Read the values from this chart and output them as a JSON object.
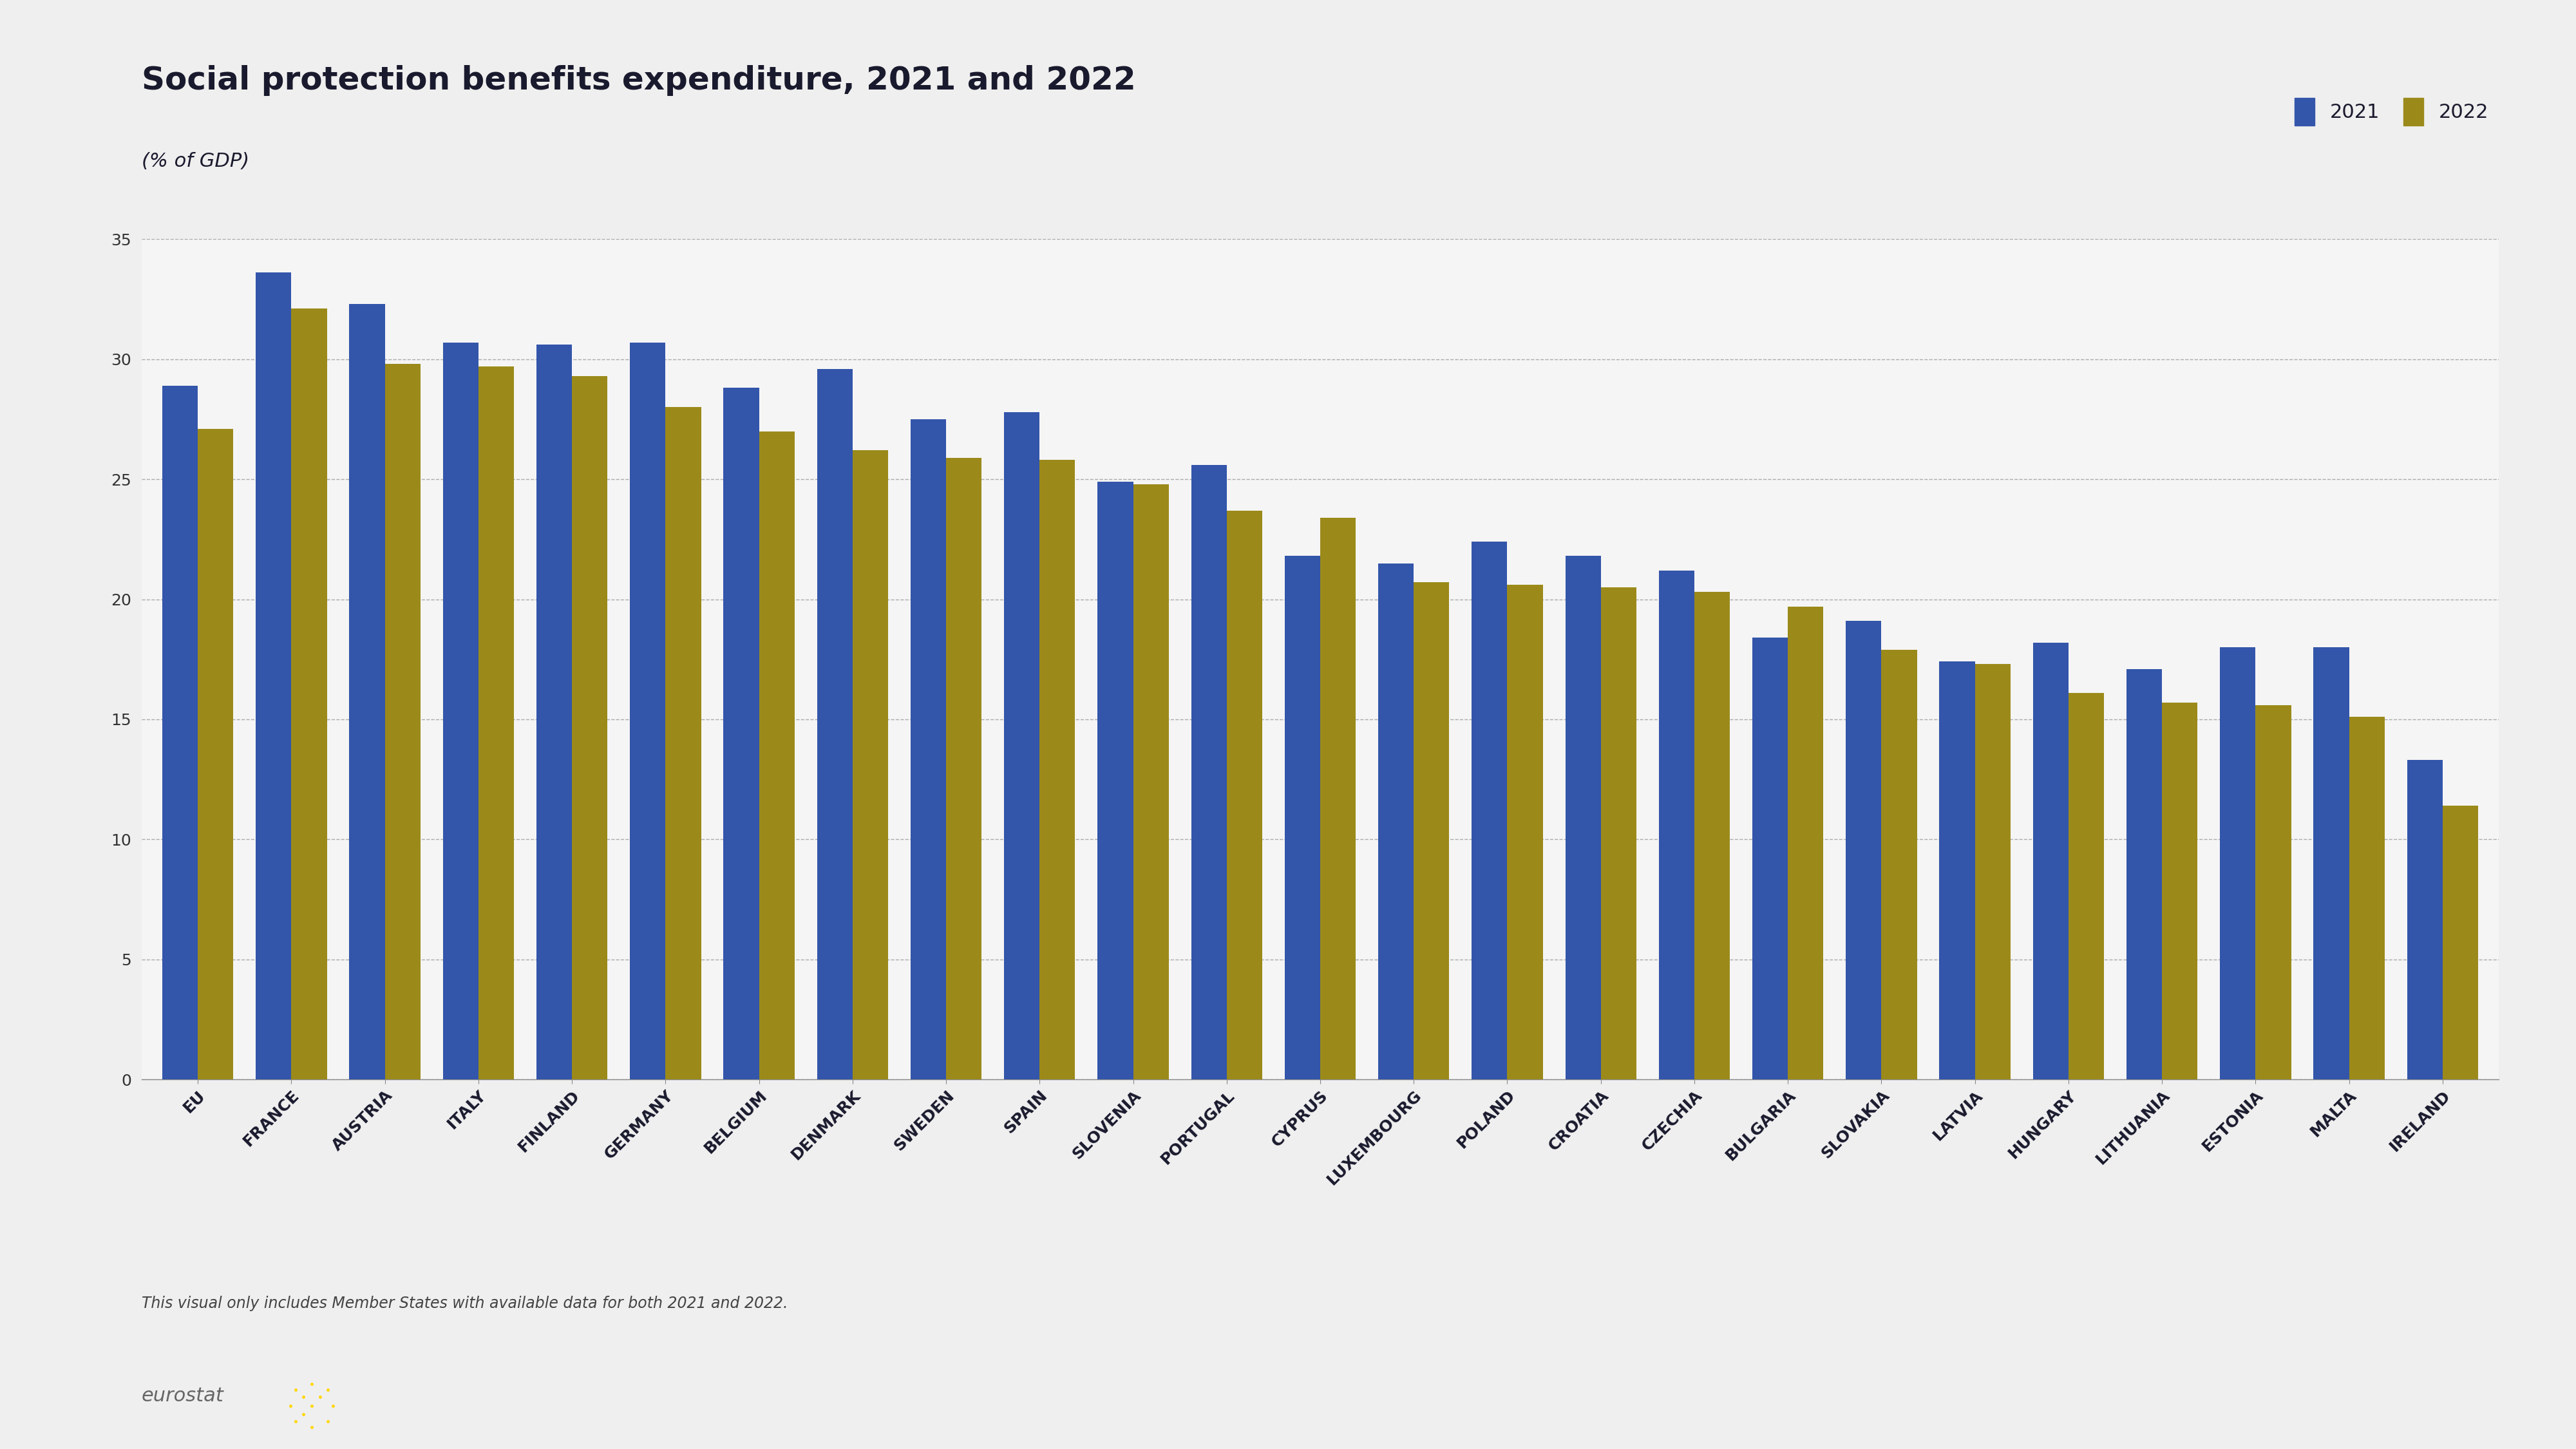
{
  "title": "Social protection benefits expenditure, 2021 and 2022",
  "subtitle": "(% of GDP)",
  "footnote": "This visual only includes Member States with available data for both 2021 and 2022.",
  "categories": [
    "EU",
    "FRANCE",
    "AUSTRIA",
    "ITALY",
    "FINLAND",
    "GERMANY",
    "BELGIUM",
    "DENMARK",
    "SWEDEN",
    "SPAIN",
    "SLOVENIA",
    "PORTUGAL",
    "CYPRUS",
    "LUXEMBOURG",
    "POLAND",
    "CROATIA",
    "CZECHIA",
    "BULGARIA",
    "SLOVAKIA",
    "LATVIA",
    "HUNGARY",
    "LITHUANIA",
    "ESTONIA",
    "MALTA",
    "IRELAND"
  ],
  "values_2021": [
    28.9,
    33.6,
    32.3,
    30.7,
    30.6,
    30.7,
    28.8,
    29.6,
    27.5,
    27.8,
    24.9,
    25.6,
    21.8,
    21.5,
    22.4,
    21.8,
    21.2,
    18.4,
    19.1,
    17.4,
    18.2,
    17.1,
    18.0,
    18.0,
    13.3
  ],
  "values_2022": [
    27.1,
    32.1,
    29.8,
    29.7,
    29.3,
    28.0,
    27.0,
    26.2,
    25.9,
    25.8,
    24.8,
    23.7,
    23.4,
    20.7,
    20.6,
    20.5,
    20.3,
    19.7,
    17.9,
    17.3,
    16.1,
    15.7,
    15.6,
    15.1,
    11.4
  ],
  "color_2021": "#3355AA",
  "color_2022": "#9B8A1A",
  "background_color": "#EFEFEF",
  "plot_background_color": "#F5F5F5",
  "ylim": [
    0,
    35
  ],
  "yticks": [
    0,
    5,
    10,
    15,
    20,
    25,
    30,
    35
  ],
  "title_fontsize": 36,
  "subtitle_fontsize": 22,
  "tick_fontsize": 18,
  "legend_fontsize": 22,
  "footnote_fontsize": 17,
  "bar_width": 0.38,
  "legend_label_2021": "2021",
  "legend_label_2022": "2022",
  "eurostat_fontsize": 22
}
